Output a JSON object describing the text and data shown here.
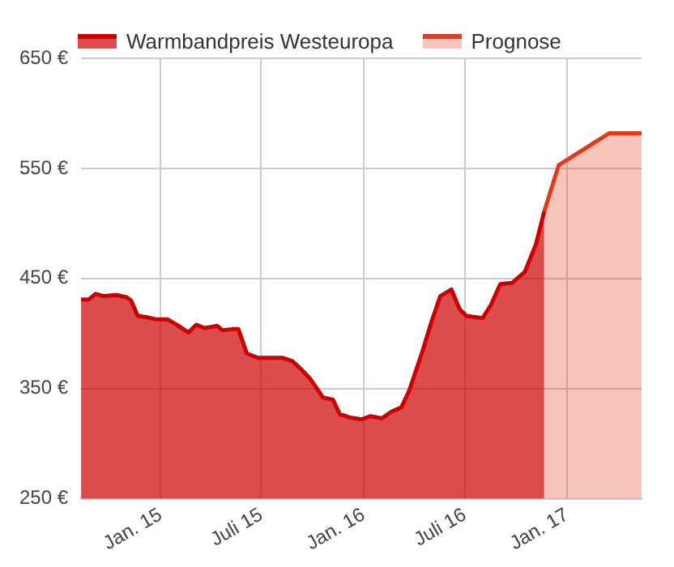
{
  "chart_data": {
    "type": "area",
    "x": [
      "2014-08-11",
      "2014-08-25",
      "2014-09-06",
      "2014-09-21",
      "2014-10-14",
      "2014-11-01",
      "2014-11-09",
      "2014-11-21",
      "2014-12-06",
      "2014-12-23",
      "2015-01-13",
      "2015-01-30",
      "2015-02-20",
      "2015-03-06",
      "2015-03-21",
      "2015-04-13",
      "2015-04-22",
      "2015-05-10",
      "2015-05-21",
      "2015-06-05",
      "2015-06-25",
      "2015-07-13",
      "2015-08-08",
      "2015-08-26",
      "2015-09-12",
      "2015-09-27",
      "2015-10-20",
      "2015-11-07",
      "2015-11-19",
      "2015-12-06",
      "2015-12-28",
      "2016-01-13",
      "2016-02-03",
      "2016-02-20",
      "2016-03-09",
      "2016-03-23",
      "2016-04-16",
      "2016-05-03",
      "2016-05-18",
      "2016-06-07",
      "2016-06-22",
      "2016-07-04",
      "2016-08-02",
      "2016-08-17",
      "2016-09-03",
      "2016-09-24",
      "2016-10-17",
      "2016-11-06",
      "2016-11-21"
    ],
    "series": [
      {
        "name": "Warmbandpreis Westeuropa",
        "color": "#cc0000",
        "values": [
          431,
          431,
          436,
          434,
          435,
          433,
          430,
          416,
          415,
          413,
          413,
          408,
          401,
          408,
          405,
          407,
          403,
          404,
          404,
          382,
          378,
          378,
          378,
          375,
          367,
          359,
          342,
          340,
          327,
          324,
          322,
          325,
          323,
          329,
          333,
          348,
          384,
          412,
          434,
          440,
          422,
          416,
          414,
          426,
          445,
          446,
          456,
          481,
          511
        ]
      },
      {
        "name": "Prognose",
        "color": "#e03c1c",
        "x": [
          "2016-11-21",
          "2016-12-17",
          "2017-03-18",
          "2017-05-15"
        ],
        "values": [
          511,
          553,
          582,
          582
        ]
      }
    ],
    "xlim": [
      "2014-08-11",
      "2017-05-15"
    ],
    "xticks": [
      {
        "value": "2015-01-01",
        "label": "Jan. 15"
      },
      {
        "value": "2015-07-01",
        "label": "Juli 15"
      },
      {
        "value": "2016-01-01",
        "label": "Jan. 16"
      },
      {
        "value": "2016-07-01",
        "label": "Juli 16"
      },
      {
        "value": "2017-01-01",
        "label": "Jan. 17"
      }
    ],
    "ylim": [
      250,
      650
    ],
    "yticks": [
      {
        "value": 250,
        "label": "250 €"
      },
      {
        "value": 350,
        "label": "350 €"
      },
      {
        "value": 450,
        "label": "450 €"
      },
      {
        "value": 550,
        "label": "550 €"
      },
      {
        "value": 650,
        "label": "650 €"
      }
    ],
    "grid": true,
    "legend": "top left",
    "marker": "none",
    "line_style": "solid"
  }
}
